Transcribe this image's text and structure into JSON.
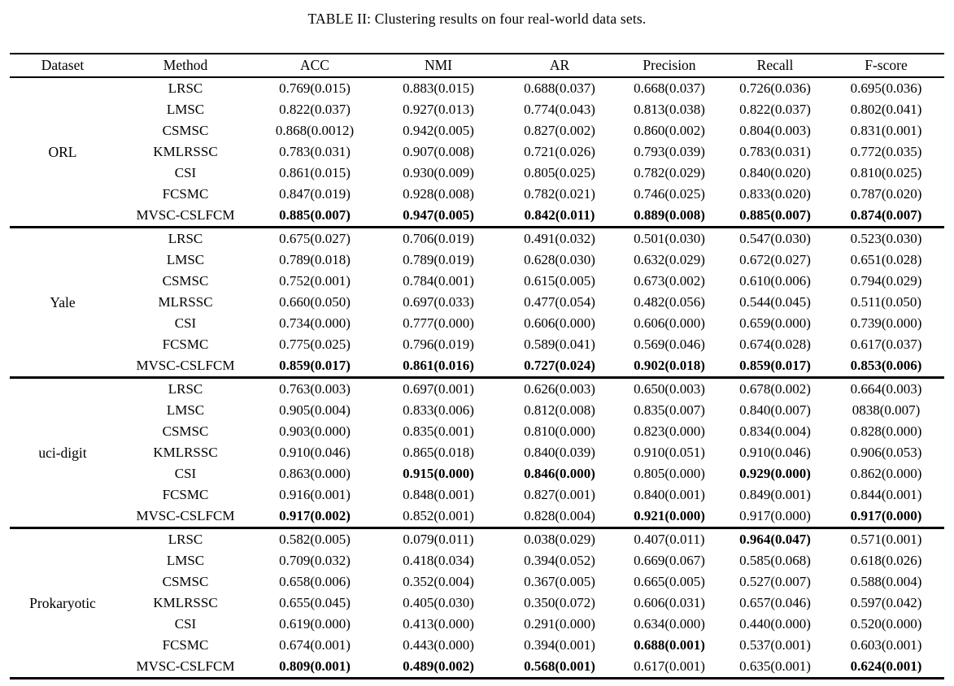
{
  "title": "TABLE II: Clustering results on four real-world data sets.",
  "table": {
    "columns": [
      "Dataset",
      "Method",
      "ACC",
      "NMI",
      "AR",
      "Precision",
      "Recall",
      "F-score"
    ],
    "groups": [
      {
        "dataset": "ORL",
        "rows": [
          {
            "method": "LRSC",
            "values": [
              "0.769(0.015)",
              "0.883(0.015)",
              "0.688(0.037)",
              "0.668(0.037)",
              "0.726(0.036)",
              "0.695(0.036)"
            ],
            "bold": [
              0,
              0,
              0,
              0,
              0,
              0
            ]
          },
          {
            "method": "LMSC",
            "values": [
              "0.822(0.037)",
              "0.927(0.013)",
              "0.774(0.043)",
              "0.813(0.038)",
              "0.822(0.037)",
              "0.802(0.041)"
            ],
            "bold": [
              0,
              0,
              0,
              0,
              0,
              0
            ]
          },
          {
            "method": "CSMSC",
            "values": [
              "0.868(0.0012)",
              "0.942(0.005)",
              "0.827(0.002)",
              "0.860(0.002)",
              "0.804(0.003)",
              "0.831(0.001)"
            ],
            "bold": [
              0,
              0,
              0,
              0,
              0,
              0
            ]
          },
          {
            "method": "KMLRSSC",
            "values": [
              "0.783(0.031)",
              "0.907(0.008)",
              "0.721(0.026)",
              "0.793(0.039)",
              "0.783(0.031)",
              "0.772(0.035)"
            ],
            "bold": [
              0,
              0,
              0,
              0,
              0,
              0
            ]
          },
          {
            "method": "CSI",
            "values": [
              "0.861(0.015)",
              "0.930(0.009)",
              "0.805(0.025)",
              "0.782(0.029)",
              "0.840(0.020)",
              "0.810(0.025)"
            ],
            "bold": [
              0,
              0,
              0,
              0,
              0,
              0
            ]
          },
          {
            "method": "FCSMC",
            "values": [
              "0.847(0.019)",
              "0.928(0.008)",
              "0.782(0.021)",
              "0.746(0.025)",
              "0.833(0.020)",
              "0.787(0.020)"
            ],
            "bold": [
              0,
              0,
              0,
              0,
              0,
              0
            ]
          },
          {
            "method": "MVSC-CSLFCM",
            "values": [
              "0.885(0.007)",
              "0.947(0.005)",
              "0.842(0.011)",
              "0.889(0.008)",
              "0.885(0.007)",
              "0.874(0.007)"
            ],
            "bold": [
              1,
              1,
              1,
              1,
              1,
              1
            ]
          }
        ]
      },
      {
        "dataset": "Yale",
        "rows": [
          {
            "method": "LRSC",
            "values": [
              "0.675(0.027)",
              "0.706(0.019)",
              "0.491(0.032)",
              "0.501(0.030)",
              "0.547(0.030)",
              "0.523(0.030)"
            ],
            "bold": [
              0,
              0,
              0,
              0,
              0,
              0
            ]
          },
          {
            "method": "LMSC",
            "values": [
              "0.789(0.018)",
              "0.789(0.019)",
              "0.628(0.030)",
              "0.632(0.029)",
              "0.672(0.027)",
              "0.651(0.028)"
            ],
            "bold": [
              0,
              0,
              0,
              0,
              0,
              0
            ]
          },
          {
            "method": "CSMSC",
            "values": [
              "0.752(0.001)",
              "0.784(0.001)",
              "0.615(0.005)",
              "0.673(0.002)",
              "0.610(0.006)",
              "0.794(0.029)"
            ],
            "bold": [
              0,
              0,
              0,
              0,
              0,
              0
            ]
          },
          {
            "method": "MLRSSC",
            "values": [
              "0.660(0.050)",
              "0.697(0.033)",
              "0.477(0.054)",
              "0.482(0.056)",
              "0.544(0.045)",
              "0.511(0.050)"
            ],
            "bold": [
              0,
              0,
              0,
              0,
              0,
              0
            ]
          },
          {
            "method": "CSI",
            "values": [
              "0.734(0.000)",
              "0.777(0.000)",
              "0.606(0.000)",
              "0.606(0.000)",
              "0.659(0.000)",
              "0.739(0.000)"
            ],
            "bold": [
              0,
              0,
              0,
              0,
              0,
              0
            ]
          },
          {
            "method": "FCSMC",
            "values": [
              "0.775(0.025)",
              "0.796(0.019)",
              "0.589(0.041)",
              "0.569(0.046)",
              "0.674(0.028)",
              "0.617(0.037)"
            ],
            "bold": [
              0,
              0,
              0,
              0,
              0,
              0
            ]
          },
          {
            "method": "MVSC-CSLFCM",
            "values": [
              "0.859(0.017)",
              "0.861(0.016)",
              "0.727(0.024)",
              "0.902(0.018)",
              "0.859(0.017)",
              "0.853(0.006)"
            ],
            "bold": [
              1,
              1,
              1,
              1,
              1,
              1
            ]
          }
        ]
      },
      {
        "dataset": "uci-digit",
        "rows": [
          {
            "method": "LRSC",
            "values": [
              "0.763(0.003)",
              "0.697(0.001)",
              "0.626(0.003)",
              "0.650(0.003)",
              "0.678(0.002)",
              "0.664(0.003)"
            ],
            "bold": [
              0,
              0,
              0,
              0,
              0,
              0
            ]
          },
          {
            "method": "LMSC",
            "values": [
              "0.905(0.004)",
              "0.833(0.006)",
              "0.812(0.008)",
              "0.835(0.007)",
              "0.840(0.007)",
              "0838(0.007)"
            ],
            "bold": [
              0,
              0,
              0,
              0,
              0,
              0
            ]
          },
          {
            "method": "CSMSC",
            "values": [
              "0.903(0.000)",
              "0.835(0.001)",
              "0.810(0.000)",
              "0.823(0.000)",
              "0.834(0.004)",
              "0.828(0.000)"
            ],
            "bold": [
              0,
              0,
              0,
              0,
              0,
              0
            ]
          },
          {
            "method": "KMLRSSC",
            "values": [
              "0.910(0.046)",
              "0.865(0.018)",
              "0.840(0.039)",
              "0.910(0.051)",
              "0.910(0.046)",
              "0.906(0.053)"
            ],
            "bold": [
              0,
              0,
              0,
              0,
              0,
              0
            ]
          },
          {
            "method": "CSI",
            "values": [
              "0.863(0.000)",
              "0.915(0.000)",
              "0.846(0.000)",
              "0.805(0.000)",
              "0.929(0.000)",
              "0.862(0.000)"
            ],
            "bold": [
              0,
              1,
              1,
              0,
              1,
              0
            ]
          },
          {
            "method": "FCSMC",
            "values": [
              "0.916(0.001)",
              "0.848(0.001)",
              "0.827(0.001)",
              "0.840(0.001)",
              "0.849(0.001)",
              "0.844(0.001)"
            ],
            "bold": [
              0,
              0,
              0,
              0,
              0,
              0
            ]
          },
          {
            "method": "MVSC-CSLFCM",
            "values": [
              "0.917(0.002)",
              "0.852(0.001)",
              "0.828(0.004)",
              "0.921(0.000)",
              "0.917(0.000)",
              "0.917(0.000)"
            ],
            "bold": [
              1,
              0,
              0,
              1,
              0,
              1
            ]
          }
        ]
      },
      {
        "dataset": "Prokaryotic",
        "rows": [
          {
            "method": "LRSC",
            "values": [
              "0.582(0.005)",
              "0.079(0.011)",
              "0.038(0.029)",
              "0.407(0.011)",
              "0.964(0.047)",
              "0.571(0.001)"
            ],
            "bold": [
              0,
              0,
              0,
              0,
              1,
              0
            ]
          },
          {
            "method": "LMSC",
            "values": [
              "0.709(0.032)",
              "0.418(0.034)",
              "0.394(0.052)",
              "0.669(0.067)",
              "0.585(0.068)",
              "0.618(0.026)"
            ],
            "bold": [
              0,
              0,
              0,
              0,
              0,
              0
            ]
          },
          {
            "method": "CSMSC",
            "values": [
              "0.658(0.006)",
              "0.352(0.004)",
              "0.367(0.005)",
              "0.665(0.005)",
              "0.527(0.007)",
              "0.588(0.004)"
            ],
            "bold": [
              0,
              0,
              0,
              0,
              0,
              0
            ]
          },
          {
            "method": "KMLRSSC",
            "values": [
              "0.655(0.045)",
              "0.405(0.030)",
              "0.350(0.072)",
              "0.606(0.031)",
              "0.657(0.046)",
              "0.597(0.042)"
            ],
            "bold": [
              0,
              0,
              0,
              0,
              0,
              0
            ]
          },
          {
            "method": "CSI",
            "values": [
              "0.619(0.000)",
              "0.413(0.000)",
              "0.291(0.000)",
              "0.634(0.000)",
              "0.440(0.000)",
              "0.520(0.000)"
            ],
            "bold": [
              0,
              0,
              0,
              0,
              0,
              0
            ]
          },
          {
            "method": "FCSMC",
            "values": [
              "0.674(0.001)",
              "0.443(0.000)",
              "0.394(0.001)",
              "0.688(0.001)",
              "0.537(0.001)",
              "0.603(0.001)"
            ],
            "bold": [
              0,
              0,
              0,
              1,
              0,
              0
            ]
          },
          {
            "method": "MVSC-CSLFCM",
            "values": [
              "0.809(0.001)",
              "0.489(0.002)",
              "0.568(0.001)",
              "0.617(0.001)",
              "0.635(0.001)",
              "0.624(0.001)"
            ],
            "bold": [
              1,
              1,
              1,
              0,
              0,
              1
            ]
          }
        ]
      }
    ]
  }
}
